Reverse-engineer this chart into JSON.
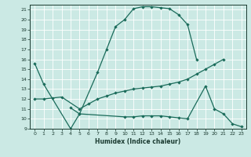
{
  "xlabel": "Humidex (Indice chaleur)",
  "bg_color": "#cbe9e4",
  "line_color": "#1a6b5a",
  "xlim": [
    -0.5,
    23.5
  ],
  "ylim": [
    9,
    21.5
  ],
  "xticks": [
    0,
    1,
    2,
    3,
    4,
    5,
    6,
    7,
    8,
    9,
    10,
    11,
    12,
    13,
    14,
    15,
    16,
    17,
    18,
    19,
    20,
    21,
    22,
    23
  ],
  "yticks": [
    9,
    10,
    11,
    12,
    13,
    14,
    15,
    16,
    17,
    18,
    19,
    20,
    21
  ],
  "s1x": [
    0,
    1,
    4,
    5,
    7,
    8,
    9,
    10,
    11,
    12,
    13,
    14,
    15,
    16,
    17,
    18
  ],
  "s1y": [
    15.6,
    13.5,
    9.0,
    10.5,
    14.7,
    17.0,
    19.3,
    20.0,
    21.1,
    21.3,
    21.3,
    21.2,
    21.1,
    20.5,
    19.5,
    16.0
  ],
  "s2x": [
    4,
    5,
    10,
    11,
    12,
    13,
    14,
    15,
    16,
    17,
    19,
    20,
    21,
    22,
    23
  ],
  "s2y": [
    11.1,
    10.5,
    10.2,
    10.2,
    10.3,
    10.3,
    10.3,
    10.2,
    10.1,
    10.0,
    13.3,
    11.0,
    10.5,
    9.5,
    9.2
  ],
  "s3x": [
    0,
    1,
    2,
    3,
    5,
    6,
    7,
    8,
    9,
    10,
    11,
    12,
    13,
    14,
    15,
    16,
    17,
    18,
    19,
    20,
    21
  ],
  "s3y": [
    12.0,
    12.0,
    12.1,
    12.2,
    11.0,
    11.5,
    12.0,
    12.3,
    12.6,
    12.8,
    13.0,
    13.1,
    13.2,
    13.3,
    13.5,
    13.7,
    14.0,
    14.5,
    15.0,
    15.5,
    16.0
  ]
}
